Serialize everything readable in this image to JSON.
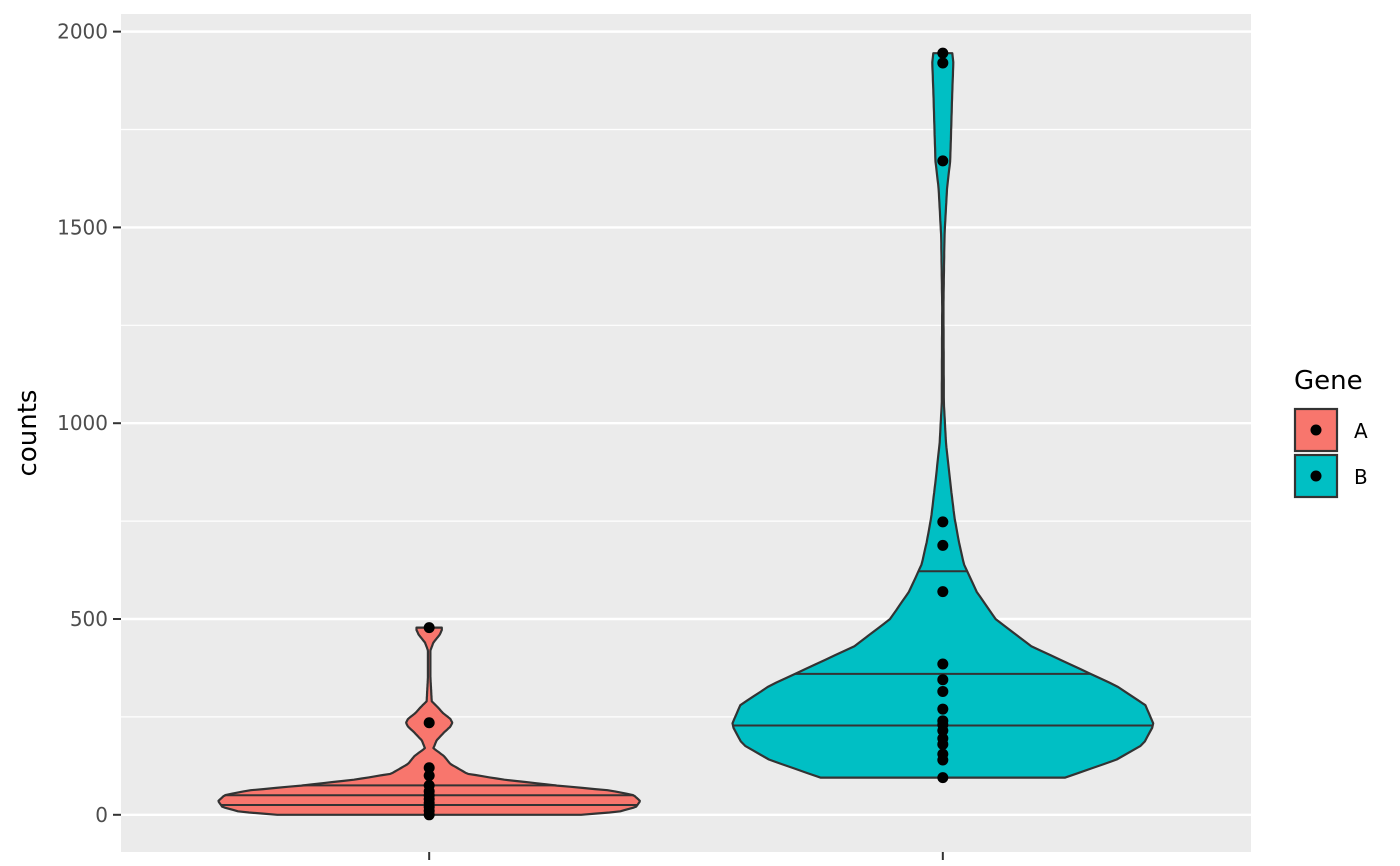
{
  "chart_data": {
    "type": "violin",
    "title": "",
    "xlabel": "",
    "ylabel": "counts",
    "ylim": [
      -95,
      2045
    ],
    "y_ticks": [
      0,
      500,
      1000,
      1500,
      2000
    ],
    "y_tick_labels": [
      "0",
      "500",
      "1000",
      "1500",
      "2000"
    ],
    "grid": true,
    "legend": {
      "title": "Gene",
      "position": "right"
    },
    "series": [
      {
        "name": "A",
        "color": "#F8766D",
        "x_position": 1,
        "density": [
          [
            0,
            0.72
          ],
          [
            8,
            0.9
          ],
          [
            20,
            0.98
          ],
          [
            35,
            1.0
          ],
          [
            50,
            0.97
          ],
          [
            62,
            0.86
          ],
          [
            75,
            0.6
          ],
          [
            90,
            0.35
          ],
          [
            105,
            0.18
          ],
          [
            130,
            0.1
          ],
          [
            150,
            0.07
          ],
          [
            170,
            0.02
          ],
          [
            190,
            0.035
          ],
          [
            210,
            0.07
          ],
          [
            225,
            0.1
          ],
          [
            235,
            0.11
          ],
          [
            245,
            0.1
          ],
          [
            260,
            0.065
          ],
          [
            275,
            0.04
          ],
          [
            290,
            0.012
          ],
          [
            350,
            0.006
          ],
          [
            420,
            0.006
          ],
          [
            440,
            0.02
          ],
          [
            460,
            0.05
          ],
          [
            472,
            0.06
          ],
          [
            478,
            0.06
          ]
        ],
        "quantiles": [
          25,
          50,
          75
        ],
        "points": [
          0,
          10,
          20,
          30,
          40,
          50,
          60,
          75,
          100,
          120,
          235,
          478
        ]
      },
      {
        "name": "B",
        "color": "#00BFC4",
        "x_position": 2,
        "density": [
          [
            95,
            0.58
          ],
          [
            140,
            0.82
          ],
          [
            180,
            0.95
          ],
          [
            230,
            1.0
          ],
          [
            280,
            0.96
          ],
          [
            330,
            0.82
          ],
          [
            380,
            0.62
          ],
          [
            430,
            0.42
          ],
          [
            500,
            0.25
          ],
          [
            570,
            0.16
          ],
          [
            640,
            0.1
          ],
          [
            700,
            0.075
          ],
          [
            760,
            0.055
          ],
          [
            850,
            0.035
          ],
          [
            950,
            0.015
          ],
          [
            1050,
            0.005
          ],
          [
            1300,
            0.003
          ],
          [
            1480,
            0.008
          ],
          [
            1600,
            0.02
          ],
          [
            1670,
            0.035
          ],
          [
            1760,
            0.04
          ],
          [
            1850,
            0.045
          ],
          [
            1920,
            0.05
          ],
          [
            1945,
            0.045
          ]
        ],
        "quantiles": [
          228,
          360,
          622
        ],
        "points": [
          95,
          140,
          155,
          180,
          195,
          215,
          230,
          240,
          270,
          315,
          345,
          385,
          570,
          688,
          748,
          1670,
          1920,
          1945
        ]
      }
    ]
  }
}
